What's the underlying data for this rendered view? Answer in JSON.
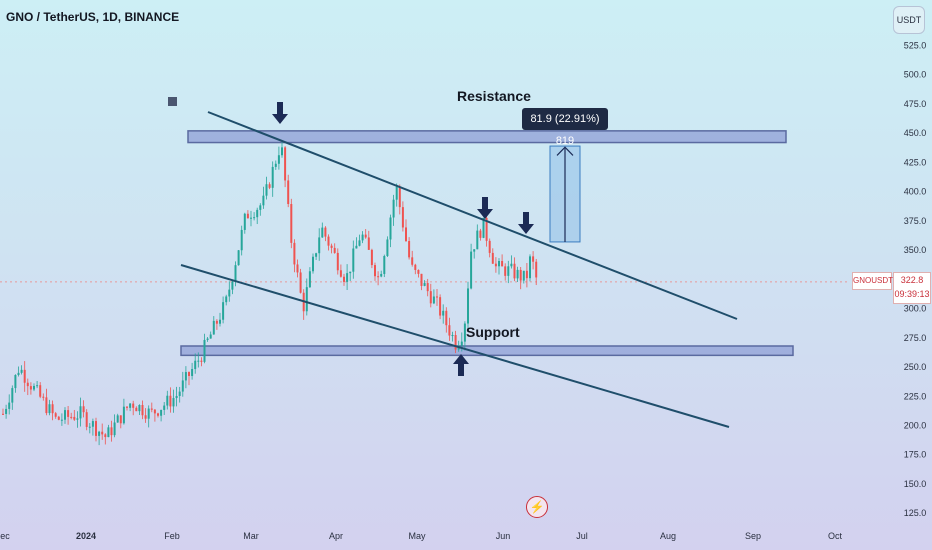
{
  "header": {
    "title": "GNO / TetherUS, 1D, BINANCE",
    "currency_button": "USDT"
  },
  "annotations": {
    "resistance_label": "Resistance",
    "support_label": "Support",
    "measure_label": "81.9 (22.91%) 819"
  },
  "price_axis": {
    "ticks": [
      "525.0",
      "500.0",
      "475.0",
      "450.0",
      "425.0",
      "400.0",
      "375.0",
      "350.0",
      "325.0",
      "300.0",
      "275.0",
      "250.0",
      "225.0",
      "200.0",
      "175.0",
      "150.0",
      "125.0"
    ],
    "symbol_tag": "GNOUSDT",
    "last_price": "322.8",
    "countdown": "09:39:13"
  },
  "time_axis": {
    "labels": [
      "ec",
      "2024",
      "Feb",
      "Mar",
      "Apr",
      "May",
      "Jun",
      "Jul",
      "Aug",
      "Sep",
      "Oct"
    ]
  },
  "colors": {
    "bull": "#26a69a",
    "bear": "#ef5350",
    "zone_fill": "#8f9fd6",
    "zone_border": "#5a6aa0",
    "trendline": "#1f4e6b",
    "arrow": "#1b2a55"
  },
  "chart_data": {
    "type": "candlestick",
    "title": "GNO / TetherUS, 1D, BINANCE",
    "ylim": [
      115,
      540
    ],
    "resistance_zone": [
      442,
      452
    ],
    "support_zone": [
      260,
      268
    ],
    "last_price": 322.8,
    "measured_move": {
      "from": 357,
      "to": 439,
      "change": 81.9,
      "percent": 22.91,
      "bars": 819
    },
    "series_monthly_close": [
      {
        "x": "2023-12",
        "y": 214
      },
      {
        "x": "2024-01",
        "y": 200
      },
      {
        "x": "2024-02",
        "y": 330
      },
      {
        "x": "2024-03",
        "y": 440
      },
      {
        "x": "2024-04",
        "y": 345
      },
      {
        "x": "2024-05",
        "y": 282
      },
      {
        "x": "2024-06",
        "y": 322.8
      }
    ]
  }
}
